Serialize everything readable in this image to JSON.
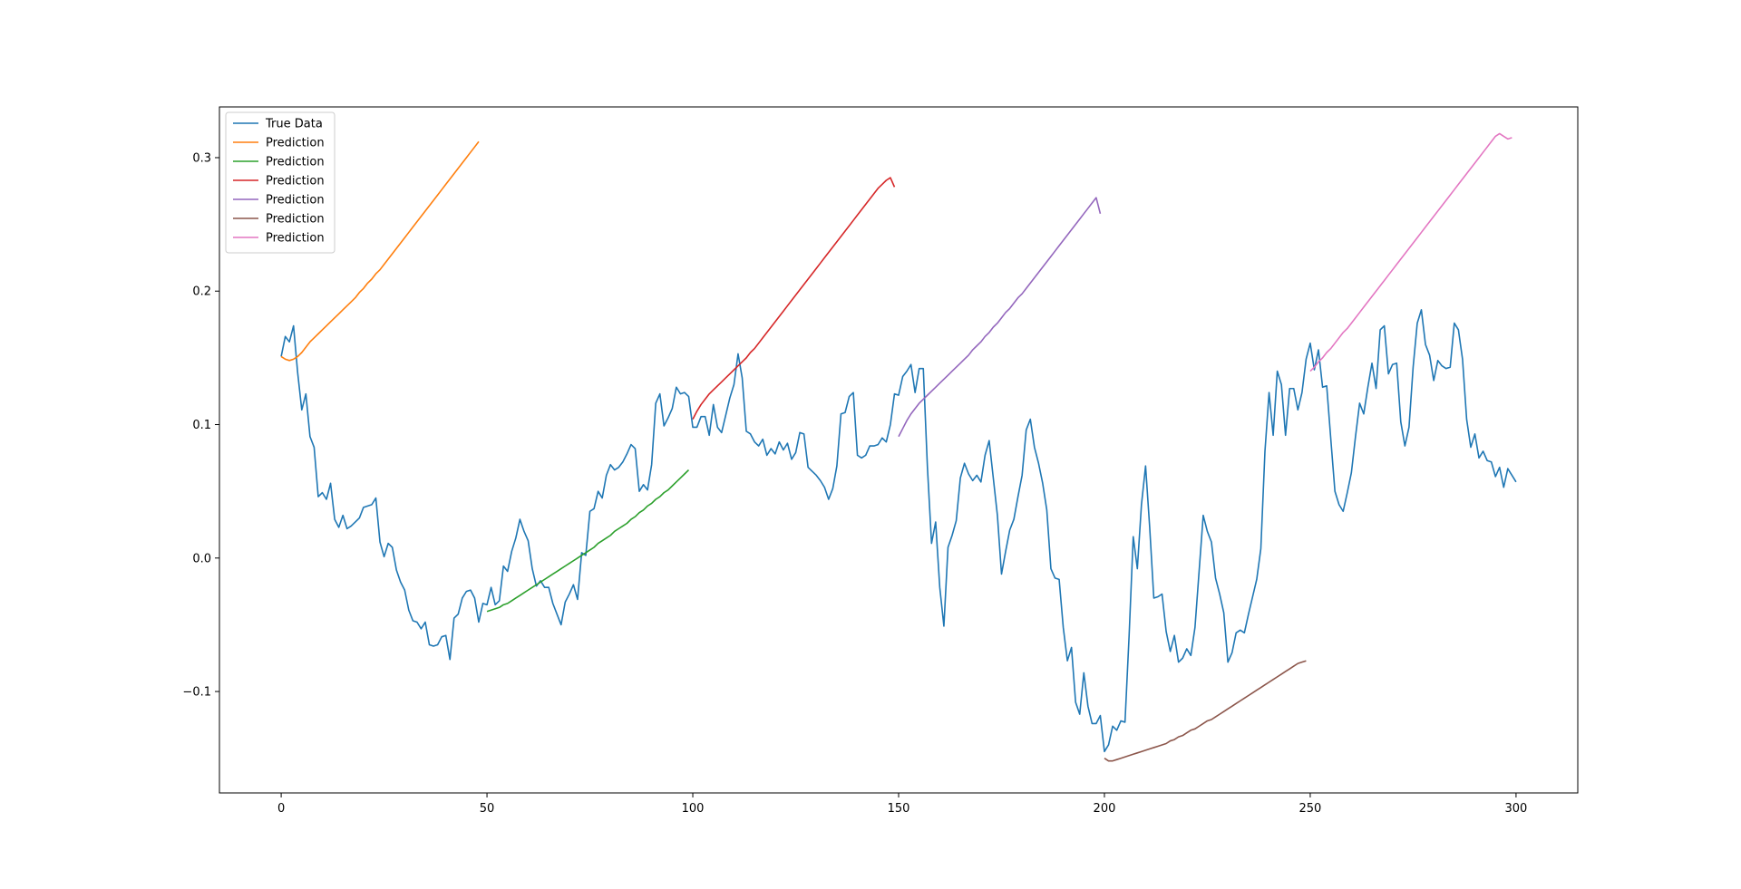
{
  "chart_data": {
    "type": "line",
    "title": "",
    "xlabel": "",
    "ylabel": "",
    "xlim": [
      -15,
      315
    ],
    "ylim": [
      -0.176,
      0.338
    ],
    "xticks": [
      0,
      50,
      100,
      150,
      200,
      250,
      300
    ],
    "yticks": [
      -0.1,
      0.0,
      0.1,
      0.2,
      0.3
    ],
    "xtick_labels": [
      "0",
      "50",
      "100",
      "150",
      "200",
      "250",
      "300"
    ],
    "ytick_labels": [
      "−0.1",
      "0.0",
      "0.1",
      "0.2",
      "0.3"
    ],
    "grid": false,
    "legend_position": "top-left",
    "series": [
      {
        "name": "True Data",
        "color": "#1f77b4",
        "x_start": 0,
        "values": [
          0.151,
          0.166,
          0.162,
          0.174,
          0.139,
          0.111,
          0.123,
          0.091,
          0.083,
          0.046,
          0.049,
          0.044,
          0.056,
          0.029,
          0.023,
          0.032,
          0.022,
          0.024,
          0.027,
          0.03,
          0.038,
          0.039,
          0.04,
          0.045,
          0.012,
          0.001,
          0.011,
          0.008,
          -0.009,
          -0.018,
          -0.024,
          -0.039,
          -0.047,
          -0.048,
          -0.053,
          -0.048,
          -0.065,
          -0.066,
          -0.065,
          -0.059,
          -0.058,
          -0.076,
          -0.045,
          -0.042,
          -0.03,
          -0.025,
          -0.024,
          -0.03,
          -0.048,
          -0.034,
          -0.035,
          -0.022,
          -0.035,
          -0.032,
          -0.006,
          -0.01,
          0.005,
          0.015,
          0.029,
          0.02,
          0.013,
          -0.008,
          -0.021,
          -0.017,
          -0.022,
          -0.022,
          -0.034,
          -0.042,
          -0.05,
          -0.033,
          -0.027,
          -0.02,
          -0.031,
          0.004,
          0.002,
          0.035,
          0.037,
          0.05,
          0.045,
          0.062,
          0.07,
          0.066,
          0.068,
          0.072,
          0.078,
          0.085,
          0.082,
          0.05,
          0.055,
          0.051,
          0.07,
          0.116,
          0.123,
          0.099,
          0.105,
          0.112,
          0.128,
          0.123,
          0.124,
          0.121,
          0.098,
          0.098,
          0.106,
          0.106,
          0.092,
          0.115,
          0.098,
          0.094,
          0.107,
          0.12,
          0.13,
          0.153,
          0.135,
          0.095,
          0.093,
          0.087,
          0.084,
          0.089,
          0.077,
          0.082,
          0.078,
          0.087,
          0.081,
          0.086,
          0.074,
          0.079,
          0.094,
          0.093,
          0.068,
          0.065,
          0.062,
          0.058,
          0.053,
          0.044,
          0.052,
          0.069,
          0.108,
          0.109,
          0.121,
          0.124,
          0.077,
          0.075,
          0.077,
          0.084,
          0.084,
          0.085,
          0.09,
          0.087,
          0.1,
          0.123,
          0.122,
          0.136,
          0.14,
          0.145,
          0.124,
          0.142,
          0.142,
          0.068,
          0.011,
          0.027,
          -0.022,
          -0.051,
          0.008,
          0.017,
          0.028,
          0.06,
          0.071,
          0.063,
          0.058,
          0.062,
          0.057,
          0.077,
          0.088,
          0.06,
          0.032,
          -0.012,
          0.005,
          0.021,
          0.029,
          0.046,
          0.062,
          0.096,
          0.104,
          0.083,
          0.071,
          0.056,
          0.036,
          -0.008,
          -0.015,
          -0.016,
          -0.052,
          -0.077,
          -0.067,
          -0.108,
          -0.117,
          -0.086,
          -0.111,
          -0.124,
          -0.124,
          -0.118,
          -0.145,
          -0.14,
          -0.126,
          -0.129,
          -0.122,
          -0.123,
          -0.058,
          0.016,
          -0.008,
          0.04,
          0.069,
          0.023,
          -0.03,
          -0.029,
          -0.027,
          -0.055,
          -0.07,
          -0.058,
          -0.078,
          -0.075,
          -0.068,
          -0.073,
          -0.052,
          -0.01,
          0.032,
          0.02,
          0.012,
          -0.015,
          -0.027,
          -0.041,
          -0.078,
          -0.071,
          -0.056,
          -0.054,
          -0.056,
          -0.042,
          -0.029,
          -0.016,
          0.007,
          0.08,
          0.124,
          0.092,
          0.14,
          0.13,
          0.092,
          0.127,
          0.127,
          0.111,
          0.124,
          0.149,
          0.161,
          0.141,
          0.156,
          0.128,
          0.129,
          0.089,
          0.05,
          0.04,
          0.035,
          0.049,
          0.064,
          0.091,
          0.116,
          0.108,
          0.128,
          0.146,
          0.127,
          0.171,
          0.174,
          0.138,
          0.145,
          0.146,
          0.102,
          0.084,
          0.098,
          0.143,
          0.176,
          0.186,
          0.16,
          0.152,
          0.133,
          0.148,
          0.144,
          0.142,
          0.143,
          0.176,
          0.171,
          0.149,
          0.104,
          0.083,
          0.093,
          0.075,
          0.08,
          0.073,
          0.072,
          0.061,
          0.068,
          0.053,
          0.067,
          0.062,
          0.057
        ]
      },
      {
        "name": "Prediction",
        "color": "#ff7f0e",
        "x_start": 0,
        "values": [
          0.151,
          0.149,
          0.148,
          0.149,
          0.151,
          0.154,
          0.158,
          0.162,
          0.165,
          0.168,
          0.171,
          0.174,
          0.177,
          0.18,
          0.183,
          0.186,
          0.189,
          0.192,
          0.195,
          0.199,
          0.202,
          0.206,
          0.209,
          0.213,
          0.216,
          0.22,
          0.224,
          0.228,
          0.232,
          0.236,
          0.24,
          0.244,
          0.248,
          0.252,
          0.256,
          0.26,
          0.264,
          0.268,
          0.272,
          0.276,
          0.28,
          0.284,
          0.288,
          0.292,
          0.296,
          0.3,
          0.304,
          0.308,
          0.312
        ]
      },
      {
        "name": "Prediction",
        "color": "#2ca02c",
        "x_start": 50,
        "values": [
          -0.04,
          -0.039,
          -0.038,
          -0.037,
          -0.035,
          -0.034,
          -0.032,
          -0.03,
          -0.028,
          -0.026,
          -0.024,
          -0.022,
          -0.02,
          -0.018,
          -0.016,
          -0.014,
          -0.012,
          -0.01,
          -0.008,
          -0.006,
          -0.004,
          -0.002,
          0.0,
          0.002,
          0.004,
          0.006,
          0.008,
          0.011,
          0.013,
          0.015,
          0.017,
          0.02,
          0.022,
          0.024,
          0.026,
          0.029,
          0.031,
          0.034,
          0.036,
          0.039,
          0.041,
          0.044,
          0.046,
          0.049,
          0.051,
          0.054,
          0.057,
          0.06,
          0.063,
          0.066
        ]
      },
      {
        "name": "Prediction",
        "color": "#d62728",
        "x_start": 100,
        "values": [
          0.104,
          0.11,
          0.115,
          0.119,
          0.123,
          0.126,
          0.129,
          0.132,
          0.135,
          0.138,
          0.141,
          0.144,
          0.147,
          0.15,
          0.154,
          0.157,
          0.161,
          0.165,
          0.169,
          0.173,
          0.177,
          0.181,
          0.185,
          0.189,
          0.193,
          0.197,
          0.201,
          0.205,
          0.209,
          0.213,
          0.217,
          0.221,
          0.225,
          0.229,
          0.233,
          0.237,
          0.241,
          0.245,
          0.249,
          0.253,
          0.257,
          0.261,
          0.265,
          0.269,
          0.273,
          0.277,
          0.28,
          0.283,
          0.285,
          0.278
        ]
      },
      {
        "name": "Prediction",
        "color": "#9467bd",
        "x_start": 150,
        "values": [
          0.091,
          0.097,
          0.103,
          0.108,
          0.112,
          0.116,
          0.119,
          0.122,
          0.125,
          0.128,
          0.131,
          0.134,
          0.137,
          0.14,
          0.143,
          0.146,
          0.149,
          0.152,
          0.156,
          0.159,
          0.162,
          0.166,
          0.169,
          0.173,
          0.176,
          0.18,
          0.184,
          0.187,
          0.191,
          0.195,
          0.198,
          0.202,
          0.206,
          0.21,
          0.214,
          0.218,
          0.222,
          0.226,
          0.23,
          0.234,
          0.238,
          0.242,
          0.246,
          0.25,
          0.254,
          0.258,
          0.262,
          0.266,
          0.27,
          0.258
        ]
      },
      {
        "name": "Prediction",
        "color": "#8c564b",
        "x_start": 200,
        "values": [
          -0.15,
          -0.152,
          -0.152,
          -0.151,
          -0.15,
          -0.149,
          -0.148,
          -0.147,
          -0.146,
          -0.145,
          -0.144,
          -0.143,
          -0.142,
          -0.141,
          -0.14,
          -0.139,
          -0.137,
          -0.136,
          -0.134,
          -0.133,
          -0.131,
          -0.129,
          -0.128,
          -0.126,
          -0.124,
          -0.122,
          -0.121,
          -0.119,
          -0.117,
          -0.115,
          -0.113,
          -0.111,
          -0.109,
          -0.107,
          -0.105,
          -0.103,
          -0.101,
          -0.099,
          -0.097,
          -0.095,
          -0.093,
          -0.091,
          -0.089,
          -0.087,
          -0.085,
          -0.083,
          -0.081,
          -0.079,
          -0.078,
          -0.077
        ]
      },
      {
        "name": "Prediction",
        "color": "#e377c2",
        "x_start": 250,
        "values": [
          0.14,
          0.143,
          0.147,
          0.15,
          0.154,
          0.157,
          0.161,
          0.165,
          0.169,
          0.172,
          0.176,
          0.18,
          0.184,
          0.188,
          0.192,
          0.196,
          0.2,
          0.204,
          0.208,
          0.212,
          0.216,
          0.22,
          0.224,
          0.228,
          0.232,
          0.236,
          0.24,
          0.244,
          0.248,
          0.252,
          0.256,
          0.26,
          0.264,
          0.268,
          0.272,
          0.276,
          0.28,
          0.284,
          0.288,
          0.292,
          0.296,
          0.3,
          0.304,
          0.308,
          0.312,
          0.316,
          0.318,
          0.316,
          0.314,
          0.315
        ]
      }
    ]
  }
}
